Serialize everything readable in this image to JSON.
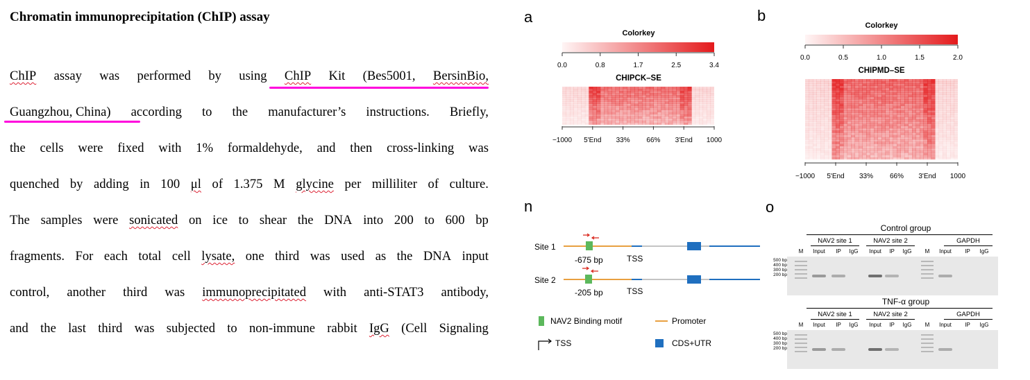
{
  "text": {
    "title": "Chromatin immunoprecipitation (ChIP) assay",
    "lines": [
      [
        "ChIP",
        "assay",
        "was",
        "performed",
        "by",
        "using",
        "ChIP",
        "Kit",
        "(Bes5001,",
        "BersinBio,"
      ],
      [
        "Guangzhou, China)",
        "according",
        "to",
        "the",
        "manufacturer’s",
        "instructions.",
        "Briefly,"
      ],
      [
        "the",
        "cells",
        "were",
        "fixed",
        "with",
        "1%",
        "formaldehyde,",
        "and",
        "then",
        "cross-linking",
        "was"
      ],
      [
        "quenched",
        "by",
        "adding",
        "in",
        "100",
        "μl",
        "of",
        "1.375",
        "M",
        "glycine",
        "per",
        "milliliter",
        "of",
        "culture."
      ],
      [
        "The",
        "samples",
        "were",
        "sonicated",
        "on",
        "ice",
        "to",
        "shear",
        "the",
        "DNA",
        "into",
        "200",
        "to",
        "600",
        "bp"
      ],
      [
        "fragments.",
        "For",
        "each",
        "total",
        "cell",
        "lysate,",
        "one",
        "third",
        "was",
        "used",
        "as",
        "the",
        "DNA",
        "input"
      ],
      [
        "control,",
        "another",
        "third",
        "was",
        "immunoprecipitated",
        "with",
        "anti-STAT3",
        "antibody,"
      ],
      [
        "and",
        "the",
        "last",
        "third",
        "was",
        "subjected",
        "to",
        "non-immune",
        "rabbit",
        "IgG",
        "(Cell",
        "Signaling"
      ]
    ]
  },
  "figure": {
    "panel_a": {
      "letter": "a",
      "colorkey_title": "Colorkey",
      "colorkey_ticks": [
        "0.0",
        "0.8",
        "1.7",
        "2.5",
        "3.4"
      ],
      "heatmap_title": "CHIPCK–SE",
      "x_ticks": [
        "−1000",
        "5'End",
        "33%",
        "66%",
        "3'End",
        "1000"
      ]
    },
    "panel_b": {
      "letter": "b",
      "colorkey_title": "Colorkey",
      "colorkey_ticks": [
        "0.0",
        "0.5",
        "1.0",
        "1.5",
        "2.0"
      ],
      "heatmap_title": "CHIPMD–SE",
      "x_ticks": [
        "−1000",
        "5'End",
        "33%",
        "66%",
        "3'End",
        "1000"
      ]
    },
    "panel_n": {
      "letter": "n",
      "sites": [
        {
          "label": "Site 1",
          "position": "-675 bp",
          "tss": "TSS"
        },
        {
          "label": "Site 2",
          "position": "-205 bp",
          "tss": "TSS"
        }
      ],
      "legend": {
        "motif": "NAV2 Binding motif",
        "promoter": "Promoter",
        "tss": "TSS",
        "cds": "CDS+UTR"
      },
      "colors": {
        "promoter": "#e8a040",
        "motif": "#5cb85c",
        "cds": "#1f6fbf",
        "arrow": "#d9261c"
      }
    },
    "panel_o": {
      "letter": "o",
      "groups": [
        {
          "title": "Control group",
          "subgroups": [
            "NAV2 site 1",
            "NAV2 site 2",
            "GAPDH"
          ],
          "lanes": [
            "M",
            "Input",
            "IP",
            "IgG",
            "Input",
            "IP",
            "IgG",
            "M",
            "Input",
            "IP",
            "IgG"
          ],
          "markers": [
            "500 bp",
            "400 bp",
            "300 bp",
            "200 bp"
          ]
        },
        {
          "title": "TNF-α group",
          "subgroups": [
            "NAV2 site 1",
            "NAV2 site 2",
            "GAPDH"
          ],
          "lanes": [
            "M",
            "Input",
            "IP",
            "IgG",
            "Input",
            "IP",
            "IgG",
            "M",
            "Input",
            "IP",
            "IgG"
          ],
          "markers": [
            "500 bp",
            "400 bp",
            "300 bp",
            "200 bp"
          ]
        }
      ]
    }
  }
}
